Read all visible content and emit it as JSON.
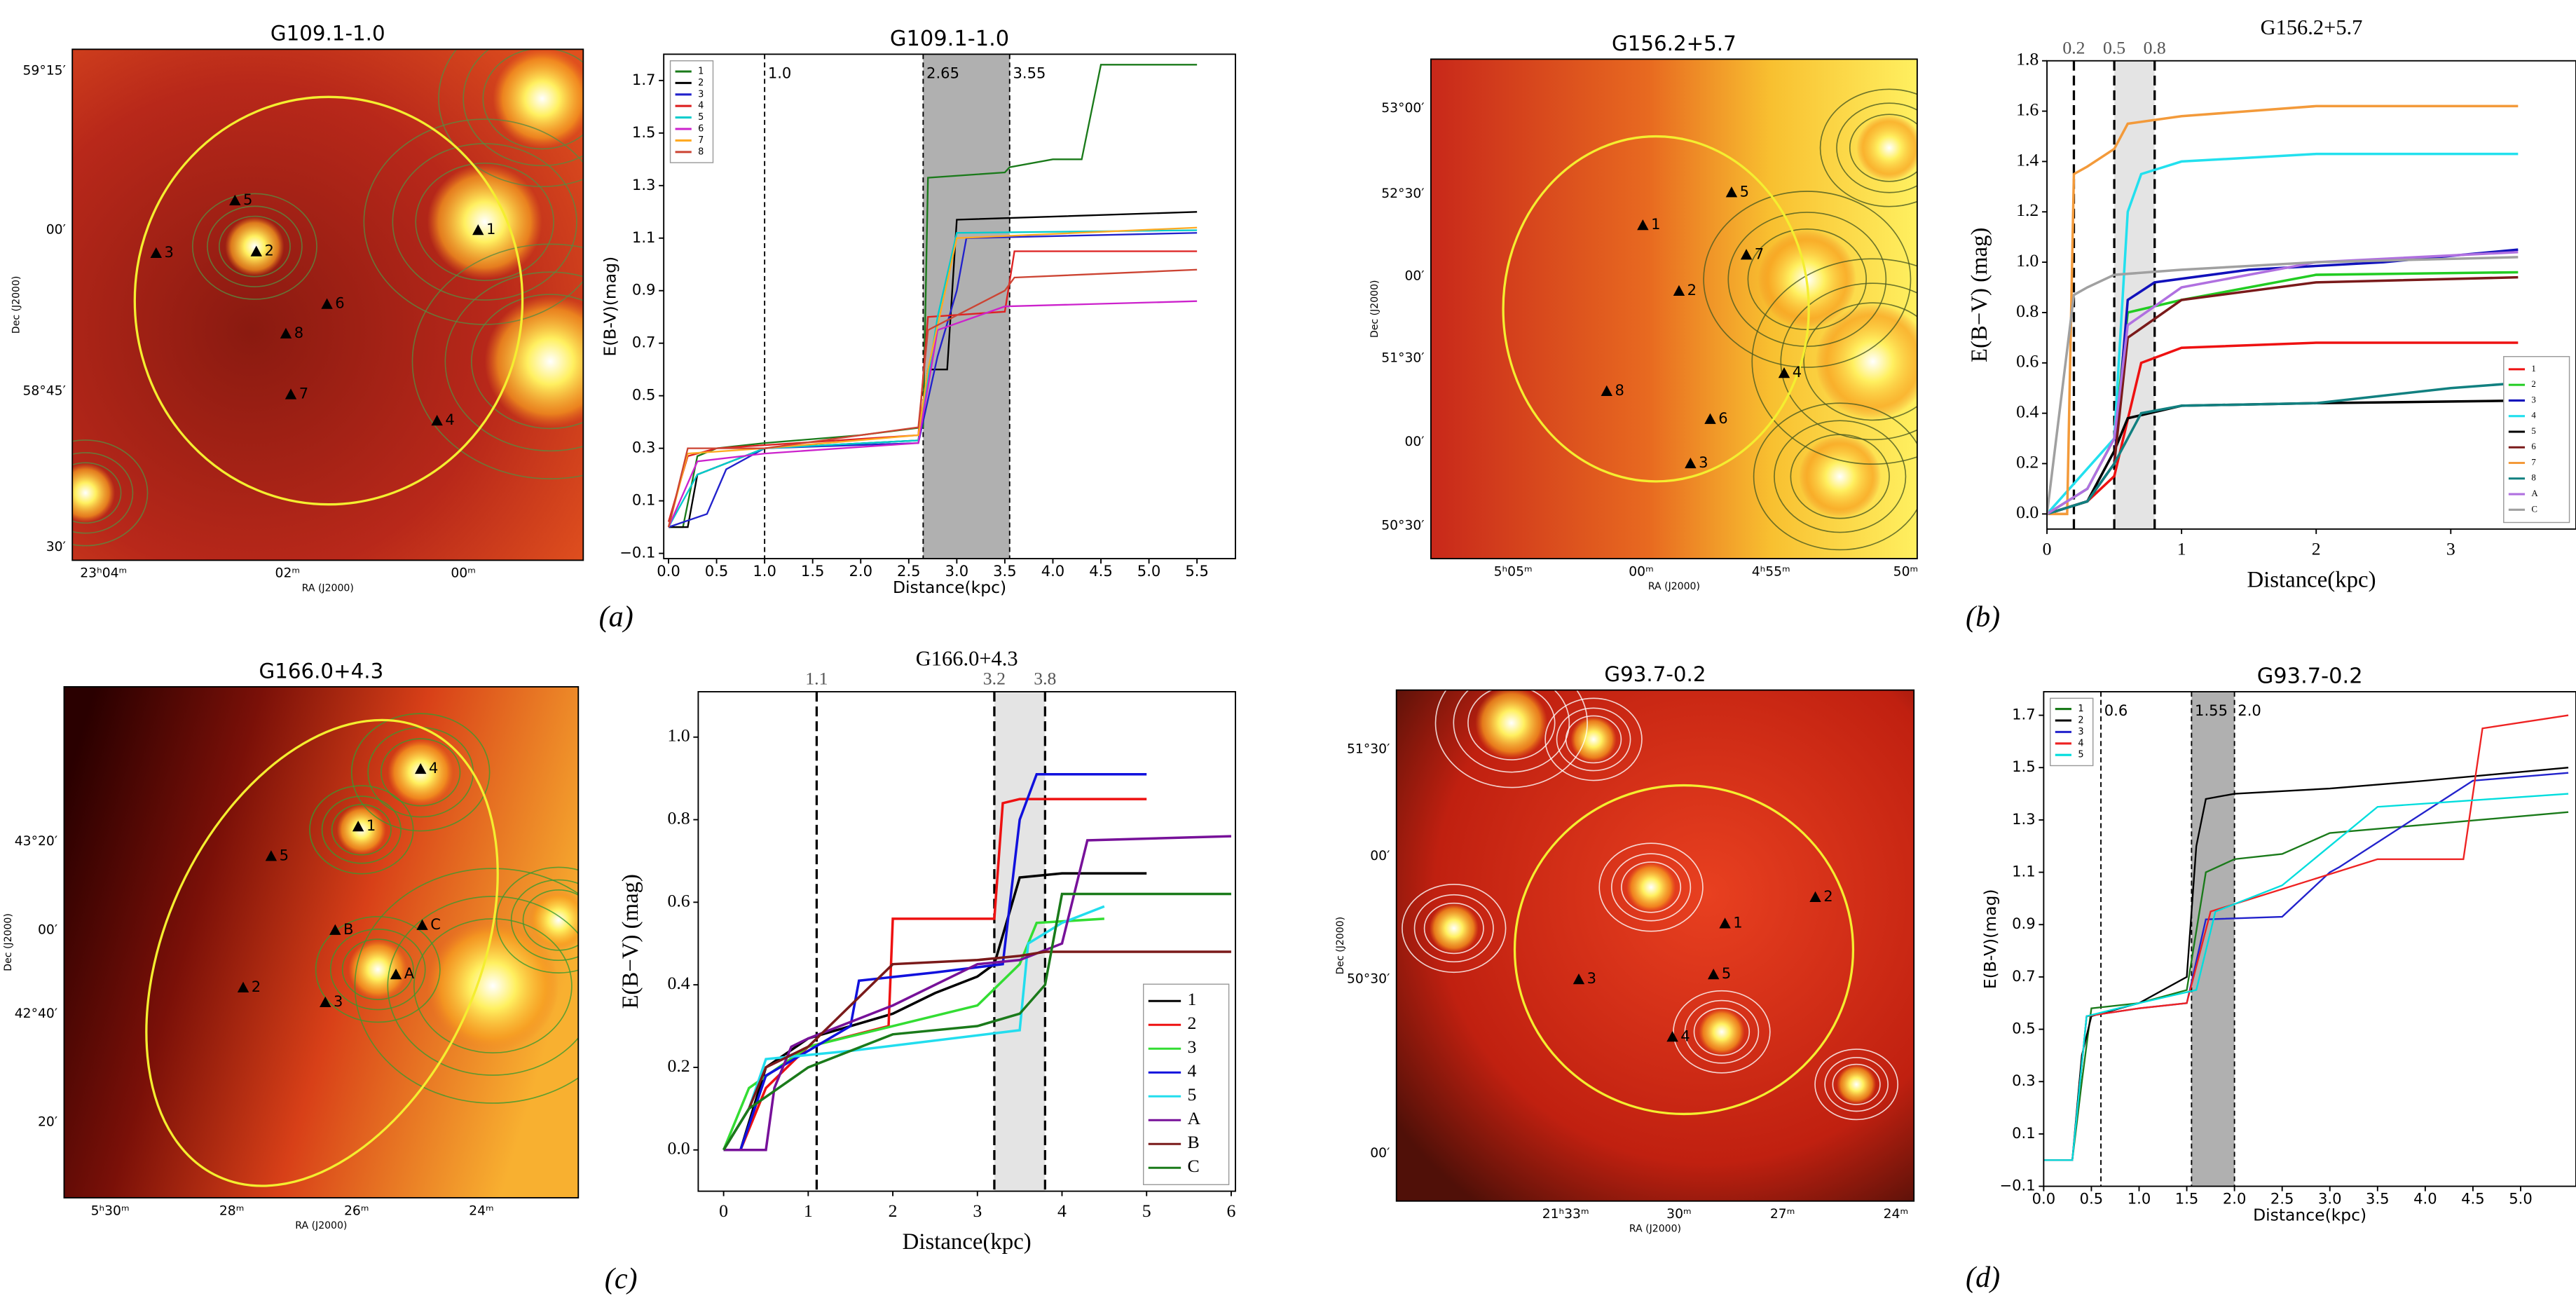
{
  "chart_data": [
    {
      "type": "line",
      "title": "G109.1-1.0",
      "xlabel": "Distance(kpc)",
      "ylabel": "E(B-V)(mag)",
      "xlim": [
        -0.05,
        5.9
      ],
      "ylim": [
        -0.12,
        1.8
      ],
      "xticks": [
        {
          "value": 0,
          "label": "0.0"
        },
        0.5,
        {
          "value": 1,
          "label": "1.0"
        },
        1.5,
        {
          "value": 2,
          "label": "2.0"
        },
        2.5,
        {
          "value": 3,
          "label": "3.0"
        },
        3.5,
        {
          "value": 4,
          "label": "4.0"
        },
        4.5,
        {
          "value": 5,
          "label": "5.0"
        },
        5.5
      ],
      "yticks": [
        {
          "value": -0.1,
          "label": "−0.1"
        },
        0.1,
        0.3,
        0.5,
        0.7,
        0.9,
        1.1,
        1.3,
        1.5,
        1.7
      ],
      "vlines": [
        {
          "value": 1,
          "label": "1.0"
        },
        2.65,
        3.55
      ],
      "shade": [
        2.65,
        3.55
      ],
      "shade_color": "#b0b0b0",
      "legend": "upper left",
      "series": [
        {
          "name": "1",
          "color": "#1a7a1a",
          "x": [
            0,
            0.15,
            0.3,
            0.5,
            1,
            2,
            2.65,
            2.7,
            3.5,
            3.55,
            4,
            4.3,
            4.5,
            5.5
          ],
          "values": [
            0,
            0,
            0.27,
            0.3,
            0.32,
            0.35,
            0.38,
            1.33,
            1.35,
            1.37,
            1.4,
            1.4,
            1.76,
            1.76
          ]
        },
        {
          "name": "2",
          "color": "#000000",
          "x": [
            0,
            0.2,
            0.3,
            1,
            2.6,
            2.7,
            2.9,
            3,
            5.5
          ],
          "values": [
            0,
            0,
            0.2,
            0.3,
            0.33,
            0.6,
            0.6,
            1.17,
            1.2
          ]
        },
        {
          "name": "3",
          "color": "#2222cc",
          "x": [
            0,
            0.4,
            0.6,
            1,
            2.6,
            2.8,
            3,
            3.1,
            5.5
          ],
          "values": [
            0,
            0.05,
            0.22,
            0.3,
            0.32,
            0.65,
            0.9,
            1.1,
            1.12
          ]
        },
        {
          "name": "4",
          "color": "#dd2222",
          "x": [
            0,
            0.2,
            0.5,
            2.6,
            2.7,
            3.5,
            3.6,
            5.5
          ],
          "values": [
            0.02,
            0.27,
            0.3,
            0.35,
            0.8,
            0.82,
            1.05,
            1.05
          ]
        },
        {
          "name": "5",
          "color": "#00cccc",
          "x": [
            0,
            0.3,
            1,
            2.6,
            2.8,
            3,
            5.5
          ],
          "values": [
            0,
            0.2,
            0.3,
            0.33,
            0.8,
            1.12,
            1.13
          ]
        },
        {
          "name": "6",
          "color": "#cc22cc",
          "x": [
            0,
            0.3,
            1,
            2.6,
            2.8,
            3.5,
            5.5
          ],
          "values": [
            0,
            0.25,
            0.28,
            0.32,
            0.75,
            0.84,
            0.86
          ]
        },
        {
          "name": "7",
          "color": "#ffaa22",
          "x": [
            0,
            0.2,
            1,
            2.6,
            2.7,
            3,
            5.5
          ],
          "values": [
            0,
            0.28,
            0.3,
            0.35,
            0.6,
            1.1,
            1.14
          ]
        },
        {
          "name": "8",
          "color": "#cc4433",
          "x": [
            0,
            0.2,
            1,
            2.6,
            2.7,
            3.5,
            3.6,
            5.5
          ],
          "values": [
            0,
            0.3,
            0.3,
            0.38,
            0.75,
            0.9,
            0.95,
            0.98
          ]
        }
      ]
    },
    {
      "type": "line",
      "title": "G156.2+5.7",
      "xlabel": "Distance(kpc)",
      "ylabel": "E(B−V) (mag)",
      "xlim": [
        0,
        3.93
      ],
      "ylim": [
        -0.06,
        1.8
      ],
      "xticks": [
        0,
        1,
        2,
        3
      ],
      "yticks": [
        {
          "value": 0,
          "label": "0.0"
        },
        0.2,
        0.4,
        0.6,
        0.8,
        {
          "value": 1,
          "label": "1.0"
        },
        1.2,
        1.4,
        1.6,
        1.8
      ],
      "vlines": [
        0.2,
        0.5,
        0.8
      ],
      "shade": [
        0.5,
        0.8
      ],
      "shade_color": "#e4e4e4",
      "legend": "lower right",
      "series": [
        {
          "name": "1",
          "color": "#ee1111",
          "x": [
            0,
            0.3,
            0.5,
            0.7,
            1,
            2,
            3.5
          ],
          "values": [
            0,
            0.05,
            0.15,
            0.6,
            0.66,
            0.68,
            0.68
          ]
        },
        {
          "name": "2",
          "color": "#22cc22",
          "x": [
            0,
            0.3,
            0.5,
            0.6,
            1,
            2,
            3.5
          ],
          "values": [
            0,
            0.1,
            0.3,
            0.8,
            0.85,
            0.95,
            0.96
          ]
        },
        {
          "name": "3",
          "color": "#1111bb",
          "x": [
            0,
            0.3,
            0.5,
            0.6,
            0.8,
            1.5,
            2.5,
            3.5
          ],
          "values": [
            0,
            0.05,
            0.2,
            0.85,
            0.92,
            0.97,
            1,
            1.05
          ]
        },
        {
          "name": "4",
          "color": "#22e0ee",
          "x": [
            0,
            0.5,
            0.6,
            0.7,
            1,
            2,
            3.5
          ],
          "values": [
            0,
            0.3,
            1.2,
            1.35,
            1.4,
            1.43,
            1.43
          ]
        },
        {
          "name": "5",
          "color": "#000000",
          "x": [
            0,
            0.3,
            0.5,
            0.6,
            1,
            2,
            3.5
          ],
          "values": [
            0,
            0.05,
            0.25,
            0.38,
            0.43,
            0.44,
            0.45
          ]
        },
        {
          "name": "6",
          "color": "#7a1a1a",
          "x": [
            0,
            0.3,
            0.5,
            0.6,
            1,
            2,
            3.5
          ],
          "values": [
            0,
            0.05,
            0.2,
            0.7,
            0.85,
            0.92,
            0.94
          ]
        },
        {
          "name": "7",
          "color": "#f39a3a",
          "x": [
            0,
            0.15,
            0.2,
            0.3,
            0.5,
            0.6,
            1,
            2,
            3.5
          ],
          "values": [
            0,
            0,
            1.35,
            1.38,
            1.45,
            1.55,
            1.58,
            1.62,
            1.62
          ]
        },
        {
          "name": "8",
          "color": "#118080",
          "x": [
            0,
            0.3,
            0.5,
            0.7,
            1,
            2,
            3,
            3.5
          ],
          "values": [
            0,
            0.05,
            0.2,
            0.4,
            0.43,
            0.44,
            0.5,
            0.52
          ]
        },
        {
          "name": "A",
          "color": "#b070e0",
          "x": [
            0,
            0.3,
            0.5,
            0.6,
            1,
            2,
            3.5
          ],
          "values": [
            0,
            0.1,
            0.3,
            0.75,
            0.9,
            1,
            1.04
          ]
        },
        {
          "name": "C",
          "color": "#a0a0a0",
          "x": [
            0,
            0.2,
            0.3,
            0.5,
            1,
            2,
            3.5
          ],
          "values": [
            0,
            0.87,
            0.9,
            0.95,
            0.97,
            1,
            1.02
          ]
        }
      ]
    },
    {
      "type": "line",
      "title": "G166.0+4.3",
      "xlabel": "Distance(kpc)",
      "ylabel": "E(B−V) (mag)",
      "xlim": [
        -0.3,
        6.05
      ],
      "ylim": [
        -0.1,
        1.11
      ],
      "xticks": [
        0,
        1,
        2,
        3,
        4,
        5,
        6
      ],
      "yticks": [
        {
          "value": 0,
          "label": "0.0"
        },
        0.2,
        0.4,
        0.6,
        0.8,
        {
          "value": 1,
          "label": "1.0"
        }
      ],
      "vlines": [
        1.1,
        3.2,
        3.8
      ],
      "shade": [
        3.2,
        3.8
      ],
      "shade_color": "#e4e4e4",
      "legend": "lower right",
      "series": [
        {
          "name": "1",
          "color": "#000000",
          "x": [
            0,
            0.2,
            0.5,
            1,
            1.5,
            2,
            2.5,
            3,
            3.2,
            3.5,
            4,
            5
          ],
          "values": [
            0,
            0,
            0.2,
            0.27,
            0.3,
            0.33,
            0.38,
            0.42,
            0.45,
            0.66,
            0.67,
            0.67
          ]
        },
        {
          "name": "2",
          "color": "#ee1111",
          "x": [
            0,
            0.2,
            0.5,
            1,
            1.95,
            2,
            3.2,
            3.3,
            3.5,
            5
          ],
          "values": [
            0,
            0,
            0.15,
            0.25,
            0.3,
            0.56,
            0.56,
            0.84,
            0.85,
            0.85
          ]
        },
        {
          "name": "3",
          "color": "#33dd33",
          "x": [
            0,
            0.3,
            1,
            2,
            3,
            3.5,
            3.7,
            4.5
          ],
          "values": [
            0,
            0.15,
            0.25,
            0.3,
            0.35,
            0.45,
            0.55,
            0.56
          ]
        },
        {
          "name": "4",
          "color": "#1111dd",
          "x": [
            0,
            0.2,
            0.5,
            1.5,
            1.6,
            2.5,
            3.3,
            3.5,
            3.7,
            5
          ],
          "values": [
            0,
            0,
            0.18,
            0.3,
            0.41,
            0.43,
            0.45,
            0.8,
            0.91,
            0.91
          ]
        },
        {
          "name": "5",
          "color": "#22ddee",
          "x": [
            0,
            0.3,
            0.5,
            1.5,
            3.5,
            3.6,
            4,
            4.5
          ],
          "values": [
            0,
            0.1,
            0.22,
            0.24,
            0.29,
            0.5,
            0.55,
            0.59
          ]
        },
        {
          "name": "A",
          "color": "#771199",
          "x": [
            0,
            0.5,
            0.6,
            0.8,
            1,
            2,
            3,
            3.5,
            4,
            4.3,
            6
          ],
          "values": [
            0,
            0,
            0.15,
            0.25,
            0.27,
            0.35,
            0.45,
            0.46,
            0.5,
            0.75,
            0.76
          ]
        },
        {
          "name": "B",
          "color": "#7a1a1a",
          "x": [
            0,
            0.3,
            0.5,
            1,
            1.5,
            2,
            3,
            3.5,
            3.8,
            6
          ],
          "values": [
            0,
            0.1,
            0.2,
            0.25,
            0.35,
            0.45,
            0.46,
            0.47,
            0.48,
            0.48
          ]
        },
        {
          "name": "C",
          "color": "#1a7a1a",
          "x": [
            0,
            0.3,
            1,
            2,
            3,
            3.5,
            3.8,
            4,
            6
          ],
          "values": [
            0,
            0.1,
            0.2,
            0.28,
            0.3,
            0.33,
            0.4,
            0.62,
            0.62
          ]
        }
      ]
    },
    {
      "type": "line",
      "title": "G93.7-0.2",
      "xlabel": "Distance(kpc)",
      "ylabel": "E(B-V)(mag)",
      "xlim": [
        0,
        5.58
      ],
      "ylim": [
        -0.1,
        1.79
      ],
      "xticks": [
        {
          "value": 0,
          "label": "0.0"
        },
        0.5,
        {
          "value": 1,
          "label": "1.0"
        },
        1.5,
        {
          "value": 2,
          "label": "2.0"
        },
        2.5,
        {
          "value": 3,
          "label": "3.0"
        },
        3.5,
        {
          "value": 4,
          "label": "4.0"
        },
        4.5,
        {
          "value": 5,
          "label": "5.0"
        }
      ],
      "yticks": [
        {
          "value": -0.1,
          "label": "−0.1"
        },
        0.1,
        0.3,
        0.5,
        0.7,
        0.9,
        1.1,
        1.3,
        1.5,
        1.7
      ],
      "vlines": [
        0.6,
        1.55,
        {
          "value": 2,
          "label": "2.0"
        }
      ],
      "shade": [
        1.55,
        2
      ],
      "shade_color": "#b0b0b0",
      "legend": "upper left",
      "series": [
        {
          "name": "1",
          "color": "#1a7a1a",
          "x": [
            0,
            0.3,
            0.4,
            0.5,
            1,
            1.5,
            1.7,
            2,
            2.5,
            3,
            5.5
          ],
          "values": [
            0,
            0,
            0.3,
            0.58,
            0.6,
            0.65,
            1.1,
            1.15,
            1.17,
            1.25,
            1.33
          ]
        },
        {
          "name": "2",
          "color": "#000000",
          "x": [
            0,
            0.3,
            0.4,
            0.5,
            1,
            1.5,
            1.6,
            1.7,
            2,
            3,
            4,
            5.5
          ],
          "values": [
            0,
            0,
            0.4,
            0.55,
            0.6,
            0.7,
            1.2,
            1.38,
            1.4,
            1.42,
            1.45,
            1.5
          ]
        },
        {
          "name": "3",
          "color": "#2222cc",
          "x": [
            0,
            0.3,
            0.45,
            1,
            1.5,
            1.7,
            2.5,
            3,
            3.1,
            4.5,
            5.5
          ],
          "values": [
            0,
            0,
            0.55,
            0.58,
            0.6,
            0.92,
            0.93,
            1.1,
            1.12,
            1.45,
            1.48
          ]
        },
        {
          "name": "4",
          "color": "#ee2222",
          "x": [
            0,
            0.3,
            0.45,
            1,
            1.5,
            1.75,
            3.5,
            4.4,
            4.6,
            5.5
          ],
          "values": [
            0,
            0,
            0.55,
            0.58,
            0.6,
            0.95,
            1.15,
            1.15,
            1.65,
            1.7
          ]
        },
        {
          "name": "5",
          "color": "#00dddd",
          "x": [
            0,
            0.3,
            0.45,
            1,
            1.6,
            1.8,
            2.5,
            3.5,
            5.5
          ],
          "values": [
            0,
            0,
            0.55,
            0.6,
            0.65,
            0.95,
            1.05,
            1.35,
            1.4
          ]
        }
      ]
    }
  ],
  "maps": [
    {
      "title": "G109.1-1.0",
      "xlabel": "RA (J2000)",
      "ylabel": "Dec (J2000)",
      "xticks": [
        "23ʰ04ᵐ",
        "02ᵐ",
        "00ᵐ"
      ],
      "yticks": [
        "59°15′",
        "00′",
        "58°45′",
        "30′"
      ],
      "sources": [
        "1",
        "2",
        "3",
        "4",
        "5",
        "6",
        "7",
        "8"
      ]
    },
    {
      "title": "G156.2+5.7",
      "xlabel": "RA (J2000)",
      "ylabel": "Dec (J2000)",
      "xticks": [
        "5ʰ05ᵐ",
        "00ᵐ",
        "4ʰ55ᵐ",
        "50ᵐ"
      ],
      "yticks": [
        "53°00′",
        "52°30′",
        "00′",
        "51°30′",
        "00′",
        "50°30′"
      ],
      "sources": [
        "1",
        "2",
        "3",
        "4",
        "5",
        "6",
        "7",
        "8"
      ]
    },
    {
      "title": "G166.0+4.3",
      "xlabel": "RA (J2000)",
      "ylabel": "Dec (J2000)",
      "xticks": [
        "5ʰ30ᵐ",
        "28ᵐ",
        "26ᵐ",
        "24ᵐ"
      ],
      "yticks": [
        "43°20′",
        "00′",
        "42°40′",
        "20′"
      ],
      "sources": [
        "1",
        "2",
        "3",
        "4",
        "5",
        "A",
        "B",
        "C"
      ]
    },
    {
      "title": "G93.7-0.2",
      "xlabel": "RA (J2000)",
      "ylabel": "Dec (J2000)",
      "xticks": [
        "21ʰ33ᵐ",
        "30ᵐ",
        "27ᵐ",
        "24ᵐ"
      ],
      "yticks": [
        "51°30′",
        "00′",
        "50°30′",
        "00′"
      ],
      "sources": [
        "1",
        "2",
        "3",
        "4",
        "5"
      ]
    }
  ],
  "captions": [
    "(a)",
    "(b)",
    "(c)",
    "(d)"
  ]
}
